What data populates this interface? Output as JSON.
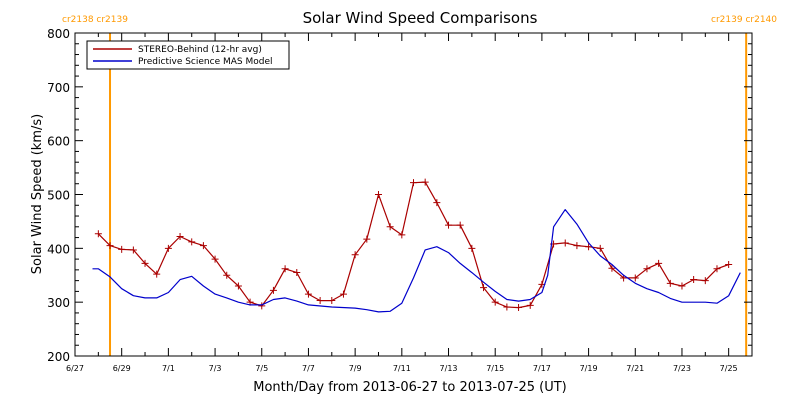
{
  "chart_data": {
    "type": "line",
    "title": "Solar Wind Speed Comparisons",
    "xlabel": "Month/Day from 2013-06-27 to 2013-07-25 (UT)",
    "ylabel": "Solar Wind Speed (km/s)",
    "ylim": [
      200,
      800
    ],
    "yticks": [
      200,
      300,
      400,
      500,
      600,
      700,
      800
    ],
    "xlim": [
      "2013-06-27T00:00",
      "2013-07-26T00:00"
    ],
    "xticks": [
      {
        "date": "2013-06-27",
        "label": "6/27"
      },
      {
        "date": "2013-06-29",
        "label": "6/29"
      },
      {
        "date": "2013-07-01",
        "label": "7/1"
      },
      {
        "date": "2013-07-03",
        "label": "7/3"
      },
      {
        "date": "2013-07-05",
        "label": "7/5"
      },
      {
        "date": "2013-07-07",
        "label": "7/7"
      },
      {
        "date": "2013-07-09",
        "label": "7/9"
      },
      {
        "date": "2013-07-11",
        "label": "7/11"
      },
      {
        "date": "2013-07-13",
        "label": "7/13"
      },
      {
        "date": "2013-07-15",
        "label": "7/15"
      },
      {
        "date": "2013-07-17",
        "label": "7/17"
      },
      {
        "date": "2013-07-19",
        "label": "7/19"
      },
      {
        "date": "2013-07-21",
        "label": "7/21"
      },
      {
        "date": "2013-07-23",
        "label": "7/23"
      },
      {
        "date": "2013-07-25",
        "label": "7/25"
      }
    ],
    "grid": false,
    "legend": "top-left",
    "carrington_markers": [
      {
        "date": "2013-06-28T12:00",
        "label": "cr2138 cr2139",
        "side": "left"
      },
      {
        "date": "2013-07-25T18:00",
        "label": "cr2139 cr2140",
        "side": "right"
      }
    ],
    "series": [
      {
        "name": "STEREO-Behind (12-hr avg)",
        "color": "#aa0000",
        "markers": "plus",
        "x": [
          "2013-06-28T00:00",
          "2013-06-28T12:00",
          "2013-06-29T00:00",
          "2013-06-29T12:00",
          "2013-06-30T00:00",
          "2013-06-30T12:00",
          "2013-07-01T00:00",
          "2013-07-01T12:00",
          "2013-07-02T00:00",
          "2013-07-02T12:00",
          "2013-07-03T00:00",
          "2013-07-03T12:00",
          "2013-07-04T00:00",
          "2013-07-04T12:00",
          "2013-07-05T00:00",
          "2013-07-05T12:00",
          "2013-07-06T00:00",
          "2013-07-06T12:00",
          "2013-07-07T00:00",
          "2013-07-07T12:00",
          "2013-07-08T00:00",
          "2013-07-08T12:00",
          "2013-07-09T00:00",
          "2013-07-09T12:00",
          "2013-07-10T00:00",
          "2013-07-10T12:00",
          "2013-07-11T00:00",
          "2013-07-11T12:00",
          "2013-07-12T00:00",
          "2013-07-12T12:00",
          "2013-07-13T00:00",
          "2013-07-13T12:00",
          "2013-07-14T00:00",
          "2013-07-14T12:00",
          "2013-07-15T00:00",
          "2013-07-15T12:00",
          "2013-07-16T00:00",
          "2013-07-16T12:00",
          "2013-07-17T00:00",
          "2013-07-17T12:00",
          "2013-07-18T00:00",
          "2013-07-18T12:00",
          "2013-07-19T00:00",
          "2013-07-19T12:00",
          "2013-07-20T00:00",
          "2013-07-20T12:00",
          "2013-07-21T00:00",
          "2013-07-21T12:00",
          "2013-07-22T00:00",
          "2013-07-22T12:00",
          "2013-07-23T00:00",
          "2013-07-23T12:00",
          "2013-07-24T00:00",
          "2013-07-24T12:00",
          "2013-07-25T00:00"
        ],
        "y": [
          427,
          405,
          398,
          397,
          372,
          352,
          400,
          422,
          412,
          405,
          380,
          350,
          330,
          300,
          293,
          322,
          362,
          355,
          315,
          303,
          303,
          315,
          388,
          417,
          500,
          440,
          425,
          522,
          523,
          485,
          443,
          443,
          400,
          327,
          300,
          291,
          290,
          294,
          333,
          408,
          410,
          405,
          403,
          400,
          363,
          345,
          345,
          362,
          372,
          335,
          330,
          342,
          340,
          362,
          370
        ]
      },
      {
        "name": "Predictive Science MAS Model",
        "color": "#0000cc",
        "markers": "none",
        "x": [
          "2013-06-27T18:00",
          "2013-06-28T00:00",
          "2013-06-28T12:00",
          "2013-06-29T00:00",
          "2013-06-29T12:00",
          "2013-06-30T00:00",
          "2013-06-30T12:00",
          "2013-07-01T00:00",
          "2013-07-01T12:00",
          "2013-07-02T00:00",
          "2013-07-02T12:00",
          "2013-07-03T00:00",
          "2013-07-03T12:00",
          "2013-07-04T00:00",
          "2013-07-04T12:00",
          "2013-07-05T00:00",
          "2013-07-05T12:00",
          "2013-07-06T00:00",
          "2013-07-06T12:00",
          "2013-07-07T00:00",
          "2013-07-08T00:00",
          "2013-07-09T00:00",
          "2013-07-09T12:00",
          "2013-07-10T00:00",
          "2013-07-10T12:00",
          "2013-07-11T00:00",
          "2013-07-11T12:00",
          "2013-07-12T00:00",
          "2013-07-12T12:00",
          "2013-07-13T00:00",
          "2013-07-13T12:00",
          "2013-07-14T00:00",
          "2013-07-14T12:00",
          "2013-07-15T00:00",
          "2013-07-15T12:00",
          "2013-07-16T00:00",
          "2013-07-16T12:00",
          "2013-07-17T00:00",
          "2013-07-17T06:00",
          "2013-07-17T12:00",
          "2013-07-18T00:00",
          "2013-07-18T12:00",
          "2013-07-19T00:00",
          "2013-07-19T12:00",
          "2013-07-20T00:00",
          "2013-07-20T12:00",
          "2013-07-21T00:00",
          "2013-07-21T12:00",
          "2013-07-22T00:00",
          "2013-07-22T12:00",
          "2013-07-23T00:00",
          "2013-07-23T12:00",
          "2013-07-24T00:00",
          "2013-07-24T12:00",
          "2013-07-25T00:00",
          "2013-07-25T12:00"
        ],
        "y": [
          362,
          362,
          347,
          325,
          312,
          308,
          308,
          318,
          342,
          348,
          330,
          315,
          308,
          300,
          295,
          295,
          305,
          308,
          302,
          295,
          291,
          289,
          286,
          282,
          283,
          298,
          345,
          397,
          403,
          392,
          372,
          355,
          337,
          320,
          305,
          302,
          305,
          318,
          350,
          440,
          472,
          445,
          410,
          386,
          370,
          350,
          335,
          325,
          318,
          307,
          300,
          300,
          300,
          298,
          312,
          355
        ]
      }
    ]
  }
}
